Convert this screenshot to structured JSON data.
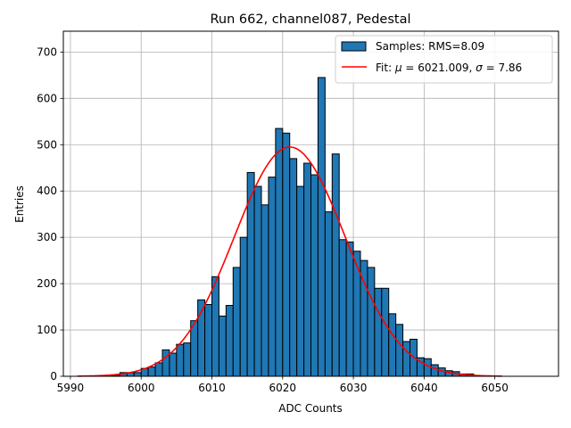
{
  "chart_data": {
    "type": "histogram",
    "title": "Run 662, channel087, Pedestal",
    "xlabel": "ADC Counts",
    "ylabel": "Entries",
    "xlim": [
      5989,
      6059
    ],
    "ylim": [
      0,
      745
    ],
    "xticks": [
      5990,
      6000,
      6010,
      6020,
      6030,
      6040,
      6050
    ],
    "yticks": [
      0,
      100,
      200,
      300,
      400,
      500,
      600,
      700
    ],
    "grid": true,
    "legend_position": "top-right",
    "bins": {
      "start": 5991,
      "width": 1,
      "counts": [
        0,
        0,
        0,
        0,
        1,
        2,
        8,
        8,
        8,
        17,
        20,
        29,
        57,
        50,
        69,
        72,
        120,
        165,
        155,
        215,
        130,
        153,
        235,
        300,
        440,
        410,
        370,
        430,
        535,
        525,
        470,
        410,
        460,
        435,
        645,
        355,
        480,
        295,
        290,
        270,
        250,
        235,
        190,
        190,
        135,
        112,
        75,
        80,
        40,
        38,
        25,
        18,
        12,
        10,
        5,
        5,
        1,
        0,
        0
      ]
    },
    "series": [
      {
        "name": "Samples: RMS=8.09",
        "kind": "bars",
        "color": "#1f77b4",
        "edge_color": "#000000"
      },
      {
        "name_prefix": "Fit: ",
        "mu_symbol": "μ",
        "mu_text": " = 6021.009, ",
        "sigma_symbol": "σ",
        "sigma_text": " = 7.86",
        "kind": "gaussian-fit-line",
        "color": "#ff0000",
        "mu": 6021.009,
        "sigma": 7.86,
        "amplitude": 495,
        "x_range": [
          5991,
          6051
        ]
      }
    ]
  }
}
